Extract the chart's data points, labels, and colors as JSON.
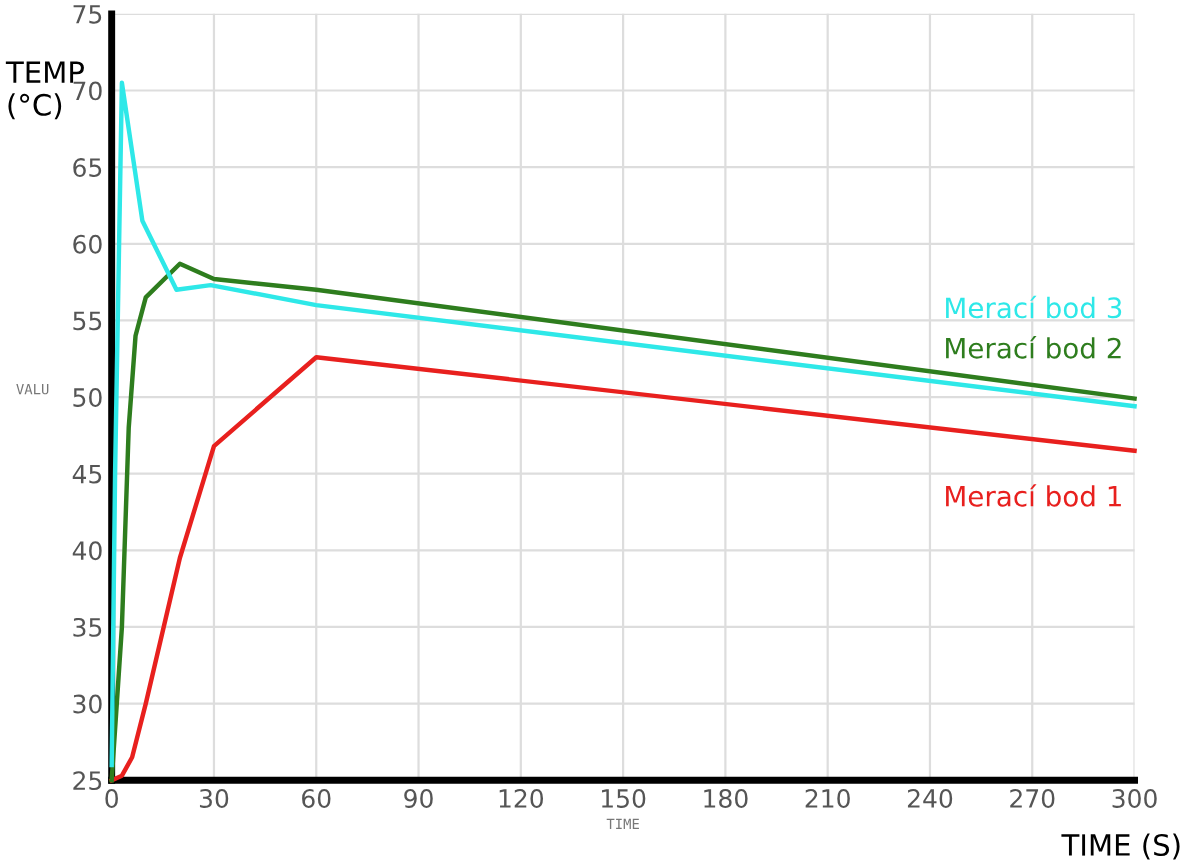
{
  "chart_data": {
    "type": "line",
    "xlabel": "TIME",
    "ylabel": "VALU",
    "annotations": [
      "TEMP\n(°C)",
      "TIME (S)"
    ],
    "xlim": [
      0,
      300
    ],
    "ylim": [
      25,
      75
    ],
    "xticks": [
      0,
      30,
      60,
      90,
      120,
      150,
      180,
      210,
      240,
      270,
      300
    ],
    "yticks": [
      25,
      30,
      35,
      40,
      45,
      50,
      55,
      60,
      65,
      70,
      75
    ],
    "grid": true,
    "legend": false,
    "line_style": "solid",
    "marker": "none",
    "series": [
      {
        "name": "Merací bod 1",
        "color": "#e8201e",
        "x": [
          0,
          3,
          6,
          10,
          20,
          30,
          60,
          300
        ],
        "values": [
          25,
          25.3,
          26.5,
          30,
          39.5,
          46.8,
          52.6,
          46.5
        ]
      },
      {
        "name": "Merací bod 2",
        "color": "#2e7d1e",
        "x": [
          0,
          3,
          5,
          7,
          10,
          20,
          30,
          60,
          300
        ],
        "values": [
          25,
          35,
          48,
          54,
          56.5,
          58.7,
          57.7,
          57,
          49.9
        ]
      },
      {
        "name": "Merací bod 3",
        "color": "#2ee8e8",
        "x": [
          0,
          1,
          3,
          9,
          19,
          29,
          60,
          300
        ],
        "values": [
          26,
          45,
          70.5,
          61.5,
          57,
          57.3,
          56,
          49.4
        ]
      }
    ]
  }
}
